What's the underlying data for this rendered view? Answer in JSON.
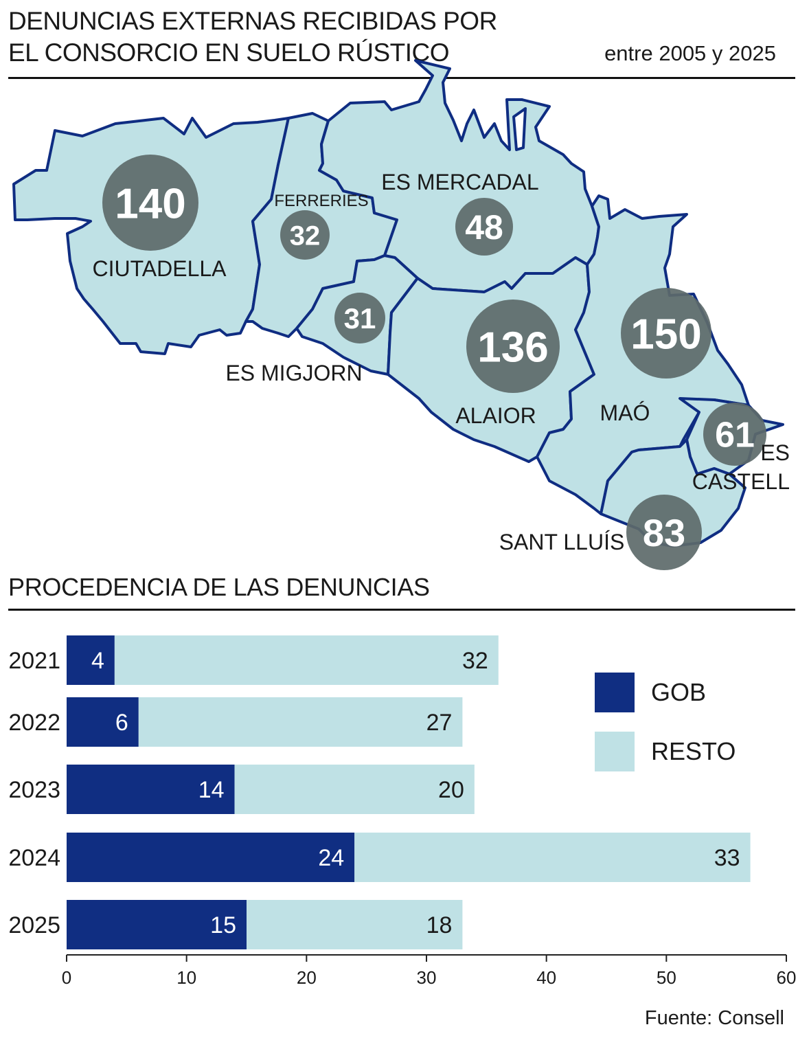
{
  "header": {
    "title": "DENUNCIAS EXTERNAS RECIBIDAS POR EL CONSORCIO EN SUELO RÚSTICO",
    "subtitle": "entre 2005 y 2025"
  },
  "map": {
    "municipalities": [
      {
        "name": "CIUTADELLA",
        "value": "140"
      },
      {
        "name": "FERRERIES",
        "value": "32"
      },
      {
        "name": "ES MERCADAL",
        "value": "48"
      },
      {
        "name": "ES MIGJORN",
        "value": "31"
      },
      {
        "name": "ALAIOR",
        "value": "136"
      },
      {
        "name": "MAÓ",
        "value": "150"
      },
      {
        "name": "ES CASTELL",
        "value": "61"
      },
      {
        "name": "SANT LLUÍS",
        "value": "83"
      }
    ],
    "colors": {
      "land": "#bfe1e5",
      "border": "#0f2d82",
      "bubble": "#5d6a6a"
    }
  },
  "section_title": "PROCEDENCIA DE LAS DENUNCIAS",
  "chart_data": {
    "type": "bar",
    "orientation": "horizontal",
    "stacked": true,
    "categories": [
      "2021",
      "2022",
      "2023",
      "2024",
      "2025"
    ],
    "series": [
      {
        "name": "GOB",
        "values": [
          4,
          6,
          14,
          24,
          15
        ],
        "color": "#102e82"
      },
      {
        "name": "RESTO",
        "values": [
          32,
          27,
          20,
          33,
          18
        ],
        "color": "#bfe1e5"
      }
    ],
    "xlim": [
      0,
      60
    ],
    "xticks": [
      0,
      10,
      20,
      30,
      40,
      50,
      60
    ],
    "grid": false,
    "legend_position": "right"
  },
  "source": "Fuente: Consell"
}
